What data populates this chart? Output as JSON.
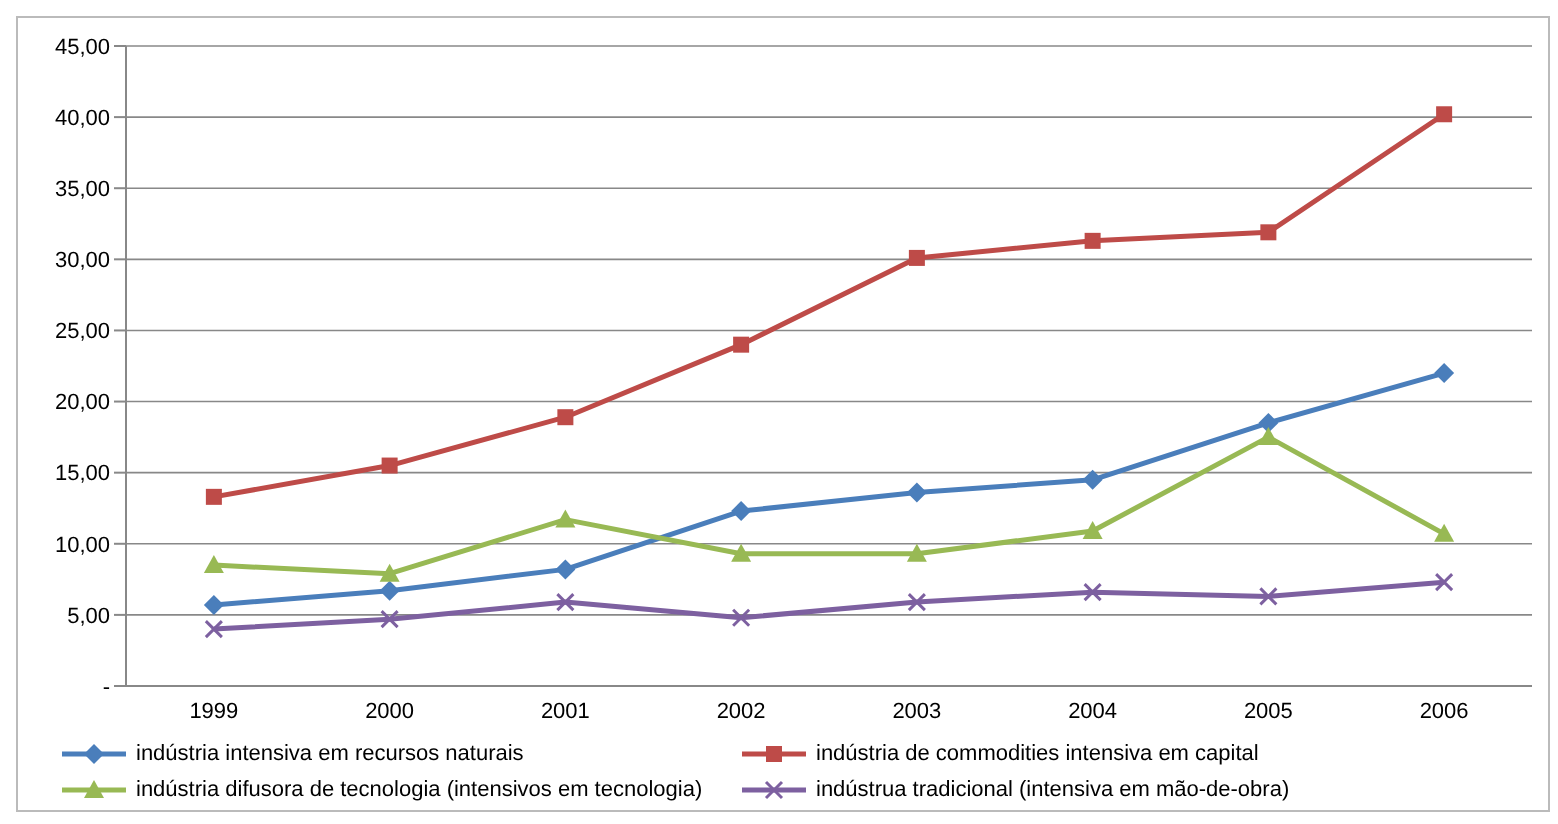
{
  "chart_data": {
    "type": "line",
    "categories": [
      "1999",
      "2000",
      "2001",
      "2002",
      "2003",
      "2004",
      "2005",
      "2006"
    ],
    "series": [
      {
        "name": "indústria intensiva em recursos naturais",
        "color": "#4a7ebb",
        "marker": "diamond",
        "values": [
          5.7,
          6.7,
          8.2,
          12.3,
          13.6,
          14.5,
          18.5,
          22.0
        ]
      },
      {
        "name": "indústria de commodities intensiva em capital",
        "color": "#be4b48",
        "marker": "square",
        "values": [
          13.3,
          15.5,
          18.9,
          24.0,
          30.1,
          31.3,
          31.9,
          40.2
        ]
      },
      {
        "name": "indústria difusora de tecnologia (intensivos em tecnologia)",
        "color": "#98b954",
        "marker": "triangle",
        "values": [
          8.5,
          7.9,
          11.7,
          9.3,
          9.3,
          10.9,
          17.5,
          10.7
        ]
      },
      {
        "name": "indústrua tradicional (intensiva em mão-de-obra)",
        "color": "#7d60a0",
        "marker": "cross",
        "values": [
          4.0,
          4.7,
          5.9,
          4.8,
          5.9,
          6.6,
          6.3,
          7.3
        ]
      }
    ],
    "ylim": [
      0,
      45
    ],
    "yticks": [
      {
        "value": 0,
        "label": "-"
      },
      {
        "value": 5,
        "label": "5,00"
      },
      {
        "value": 10,
        "label": "10,00"
      },
      {
        "value": 15,
        "label": "15,00"
      },
      {
        "value": 20,
        "label": "20,00"
      },
      {
        "value": 25,
        "label": "25,00"
      },
      {
        "value": 30,
        "label": "30,00"
      },
      {
        "value": 35,
        "label": "35,00"
      },
      {
        "value": 40,
        "label": "40,00"
      },
      {
        "value": 45,
        "label": "45,00"
      }
    ],
    "grid": "y",
    "legend": "bottom",
    "line_style": "solid"
  }
}
